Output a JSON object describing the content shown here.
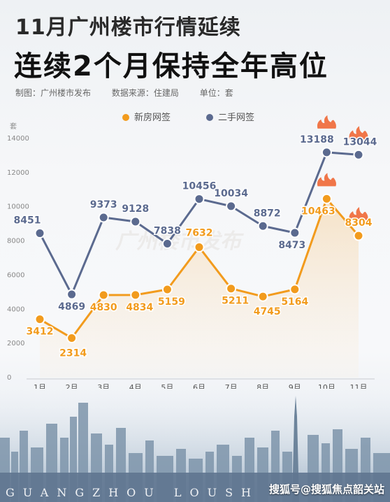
{
  "header": {
    "title_line1": "11月广州楼市行情延续",
    "title_line2": "连续2个月保持全年高位",
    "maker": "制图：广州楼市发布",
    "source": "数据来源：住建局",
    "unit": "单位：套"
  },
  "chart_data": {
    "type": "line",
    "ylabel": "套",
    "ylim": [
      0,
      14000
    ],
    "yticks": [
      0,
      2000,
      4000,
      6000,
      8000,
      10000,
      12000,
      14000
    ],
    "categories": [
      "1月",
      "2月",
      "3月",
      "4月",
      "5月",
      "6月",
      "7月",
      "8月",
      "9月",
      "10月",
      "11月"
    ],
    "series": [
      {
        "name": "新房网签",
        "color": "#f29b1d",
        "values": [
          3412,
          2314,
          4830,
          4834,
          5159,
          7632,
          5211,
          4745,
          5164,
          10463,
          8304
        ]
      },
      {
        "name": "二手网签",
        "color": "#5b6a8f",
        "values": [
          8451,
          4869,
          9373,
          9128,
          7838,
          10456,
          10034,
          8872,
          8473,
          13188,
          13044
        ]
      }
    ],
    "legend_position": "top-center",
    "grid": false,
    "watermark": "广州楼市发布"
  },
  "footer": {
    "city_letters": "GUANGZHOU LOUSH",
    "sohu_watermark": "搜狐号@搜狐焦点韶关站"
  }
}
